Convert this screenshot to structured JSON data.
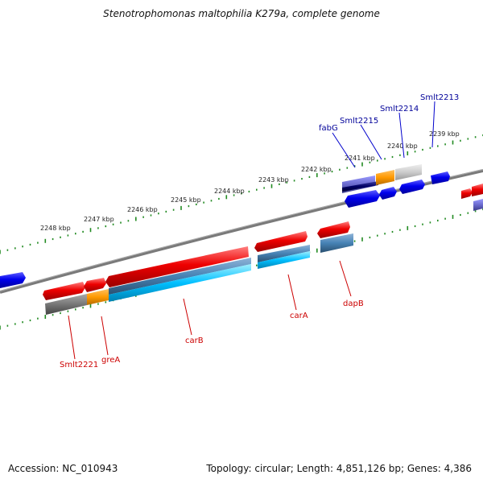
{
  "title": "Stenotrophomonas maltophilia K279a, complete genome",
  "footer": {
    "accession": "Accession: NC_010943",
    "summary": "Topology: circular; Length: 4,851,126 bp; Genes: 4,386"
  },
  "scale_labels": [
    "2239 kbp",
    "2240 kbp",
    "2241 kbp",
    "2242 kbp",
    "2243 kbp",
    "2244 kbp",
    "2245 kbp",
    "2246 kbp",
    "2247 kbp",
    "2248 kbp"
  ],
  "gene_labels_top": [
    "Smlt2213",
    "Smlt2214",
    "Smlt2215",
    "fabG"
  ],
  "gene_labels_bottom": [
    "Smlt2221",
    "greA",
    "carB",
    "carA",
    "dapB"
  ],
  "colors": {
    "forward_cds": "#ff0000",
    "reverse_cds": "#0000ff",
    "label_top": "#000099",
    "label_bottom": "#cc0000",
    "backbone": "#808080",
    "tick": "#228b22"
  }
}
